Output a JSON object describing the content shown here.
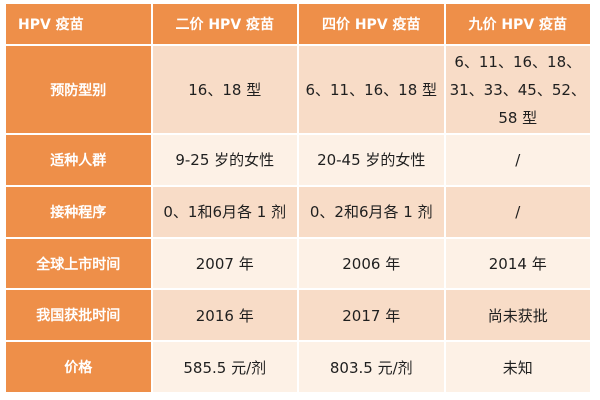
{
  "table": {
    "headers": [
      "HPV 疫苗",
      "二价 HPV 疫苗",
      "四价 HPV 疫苗",
      "九价 HPV 疫苗"
    ],
    "rows": [
      {
        "label": "预防型别",
        "values": [
          "16、18 型",
          "6、11、16、18 型",
          "6、11、16、18、31、33、45、52、58 型"
        ]
      },
      {
        "label": "适种人群",
        "values": [
          "9-25 岁的女性",
          "20-45 岁的女性",
          "/"
        ]
      },
      {
        "label": "接种程序",
        "values": [
          "0、1和6月各 1 剂",
          "0、2和6月各 1 剂",
          "/"
        ]
      },
      {
        "label": "全球上市时间",
        "values": [
          "2007 年",
          "2006 年",
          "2014 年"
        ]
      },
      {
        "label": "我国获批时间",
        "values": [
          "2016 年",
          "2017 年",
          "尚未获批"
        ]
      },
      {
        "label": "价格",
        "values": [
          "585.5 元/剂",
          "803.5 元/剂",
          "未知"
        ]
      }
    ]
  },
  "colors": {
    "header_bg": "#ee8f49",
    "row_dark": "#f8dcc7",
    "row_light": "#fdf1e6"
  }
}
